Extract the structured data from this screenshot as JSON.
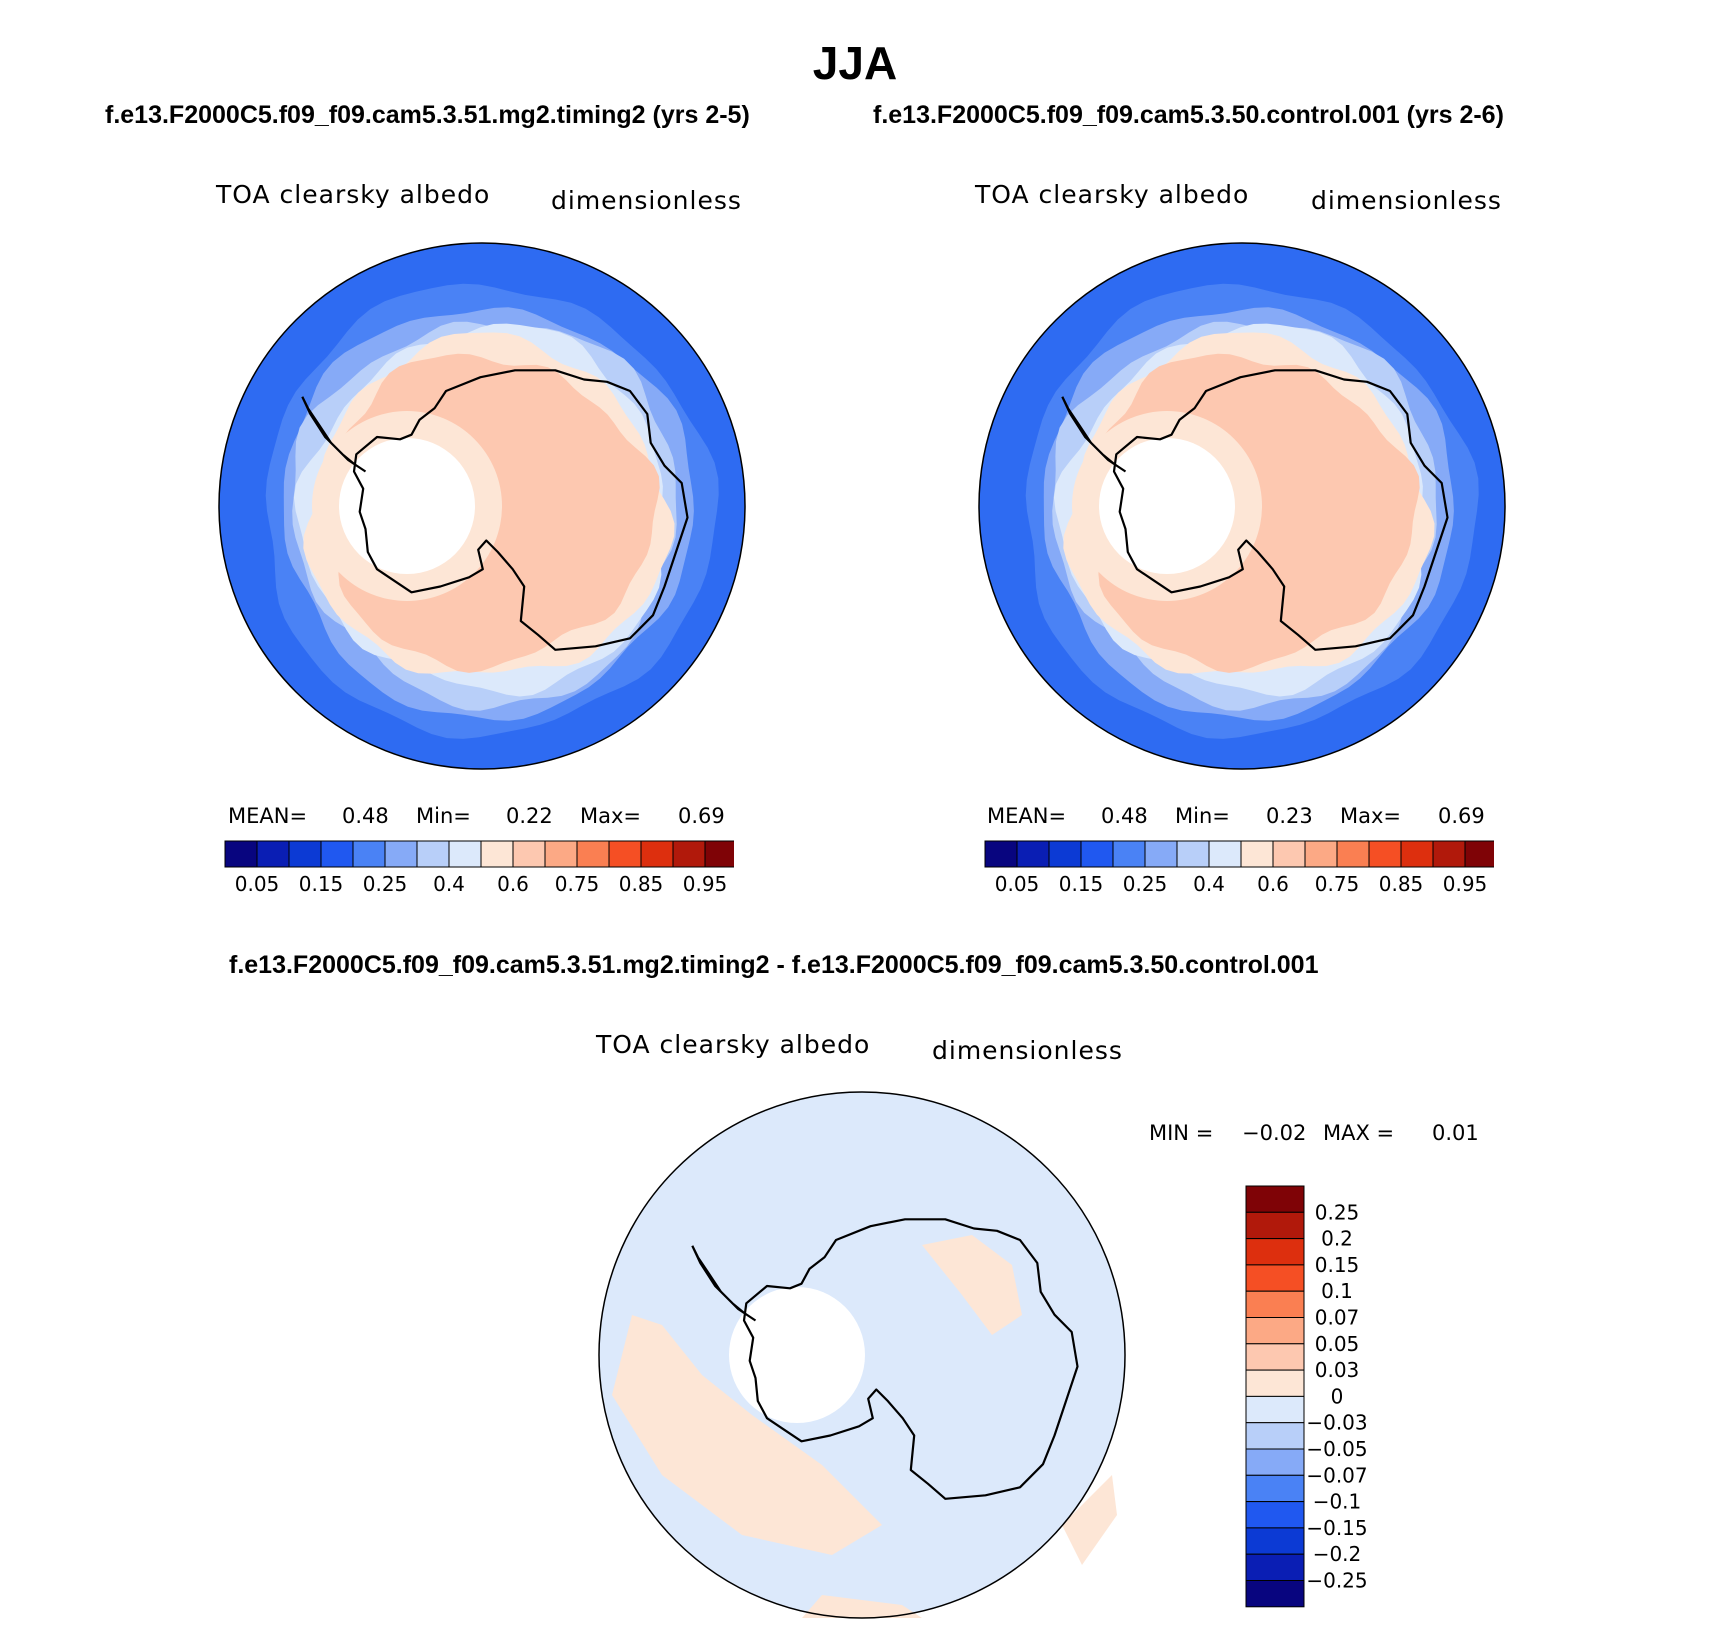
{
  "title": "JJA",
  "case_titles": {
    "left": "f.e13.F2000C5.f09_f09.cam5.3.51.mg2.timing2 (yrs 2-5)",
    "right": "f.e13.F2000C5.f09_f09.cam5.3.50.control.001 (yrs 2-6)",
    "diff": "f.e13.F2000C5.f09_f09.cam5.3.51.mg2.timing2 - f.e13.F2000C5.f09_f09.cam5.3.50.control.001"
  },
  "panels": [
    {
      "variable": "TOA clearsky albedo",
      "units": "dimensionless",
      "stats": {
        "mean_label": "MEAN=",
        "mean": "0.48",
        "min_label": "Min=",
        "min": "0.22",
        "max_label": "Max=",
        "max": "0.69"
      }
    },
    {
      "variable": "TOA clearsky albedo",
      "units": "dimensionless",
      "stats": {
        "mean_label": "MEAN=",
        "mean": "0.48",
        "min_label": "Min=",
        "min": "0.23",
        "max_label": "Max=",
        "max": "0.69"
      }
    },
    {
      "variable": "TOA clearsky albedo",
      "units": "dimensionless",
      "stats": {
        "min_label": "MIN =",
        "min": "−0.02",
        "max_label": "MAX =",
        "max": "0.01"
      }
    }
  ],
  "colorbar_main": {
    "colors": [
      "#08057f",
      "#0a1eb4",
      "#0c3ad4",
      "#2058f0",
      "#4a82f5",
      "#86aaf7",
      "#b8cff9",
      "#dce9fb",
      "#fde6d6",
      "#fdc8b0",
      "#fca985",
      "#fa7f52",
      "#f54f24",
      "#dd2f0e",
      "#b1190b",
      "#7f0306"
    ],
    "ticks": [
      "0.05",
      "0.15",
      "0.25",
      "0.4",
      "0.6",
      "0.75",
      "0.85",
      "0.95"
    ]
  },
  "colorbar_diff": {
    "colors_top_to_bottom": [
      "#7f0306",
      "#b1190b",
      "#dd2f0e",
      "#f54f24",
      "#fa7f52",
      "#fca985",
      "#fdc8b0",
      "#fde6d6",
      "#dce9fb",
      "#b8cff9",
      "#86aaf7",
      "#4a82f5",
      "#2058f0",
      "#0c3ad4",
      "#0a1eb4",
      "#08057f"
    ],
    "ticks": [
      "0.25",
      "0.2",
      "0.15",
      "0.1",
      "0.07",
      "0.05",
      "0.03",
      "0",
      "−0.03",
      "−0.05",
      "−0.07",
      "−0.1",
      "−0.15",
      "−0.2",
      "−0.25"
    ]
  },
  "map_colors": {
    "band_main": [
      "#2e6bf2",
      "#4a82f5",
      "#86aaf7",
      "#b8cff9",
      "#dce9fb",
      "#fde6d6",
      "#fdc8b0"
    ],
    "diff_ocean": "#dce9fb",
    "diff_positive": "#fde6d6",
    "coast": "#000000",
    "pole_hole": "#ffffff"
  }
}
